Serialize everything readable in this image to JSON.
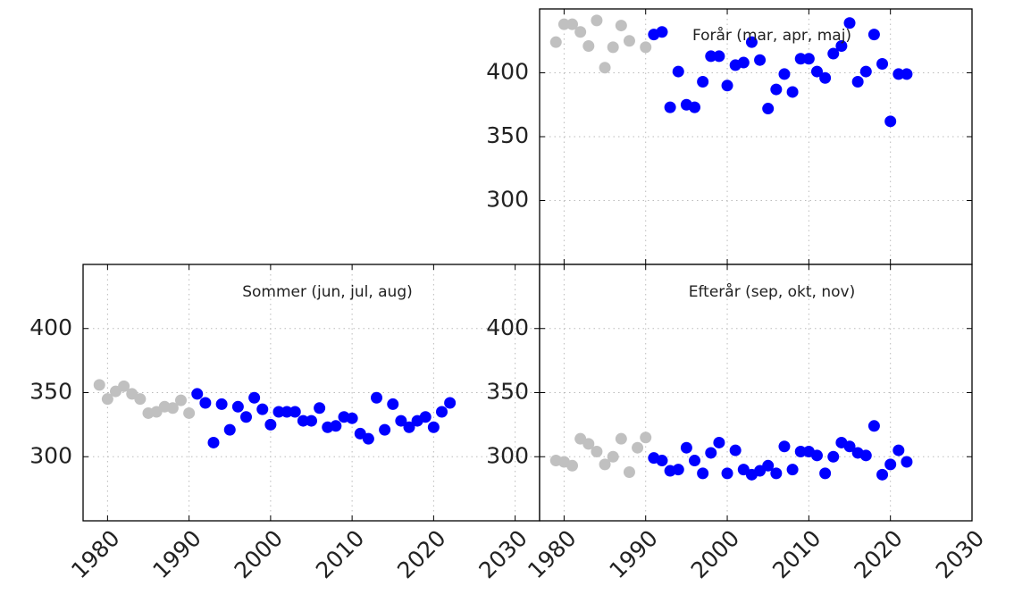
{
  "chart_data": [
    {
      "type": "scatter",
      "title": "Forår (mar, apr, maj)",
      "xlim": [
        1977,
        2030
      ],
      "ylim": [
        250,
        450
      ],
      "xticks": [
        1980,
        1990,
        2000,
        2010,
        2020,
        2030
      ],
      "yticks": [
        300,
        350,
        400
      ],
      "grid": true,
      "series": [
        {
          "color": "#c0c0c0",
          "x": [
            1979,
            1980,
            1981,
            1982,
            1983,
            1984,
            1985,
            1986,
            1987,
            1988,
            1990
          ],
          "values": [
            424,
            438,
            438,
            432,
            421,
            441,
            404,
            420,
            437,
            425,
            420
          ]
        },
        {
          "color": "#0000ff",
          "x": [
            1991,
            1992,
            1993,
            1994,
            1995,
            1996,
            1997,
            1998,
            1999,
            2000,
            2001,
            2002,
            2003,
            2004,
            2005,
            2006,
            2007,
            2008,
            2009,
            2010,
            2011,
            2012,
            2013,
            2014,
            2015,
            2016,
            2017,
            2018,
            2019,
            2020,
            2021,
            2022
          ],
          "values": [
            430,
            432,
            373,
            401,
            375,
            373,
            393,
            413,
            413,
            390,
            406,
            408,
            424,
            410,
            372,
            387,
            399,
            385,
            411,
            411,
            401,
            396,
            415,
            421,
            439,
            393,
            401,
            430,
            407,
            362,
            399,
            399
          ]
        }
      ]
    },
    {
      "type": "scatter",
      "title": "Sommer (jun, jul, aug)",
      "xlim": [
        1977,
        2033
      ],
      "ylim": [
        250,
        450
      ],
      "xticks": [
        1980,
        1990,
        2000,
        2010,
        2020,
        2030
      ],
      "yticks": [
        300,
        350,
        400
      ],
      "grid": true,
      "series": [
        {
          "color": "#c0c0c0",
          "x": [
            1979,
            1980,
            1981,
            1982,
            1983,
            1984,
            1985,
            1986,
            1987,
            1988,
            1989,
            1990
          ],
          "values": [
            356,
            345,
            351,
            355,
            349,
            345,
            334,
            335,
            339,
            338,
            344,
            334
          ]
        },
        {
          "color": "#0000ff",
          "x": [
            1991,
            1992,
            1993,
            1994,
            1995,
            1996,
            1997,
            1998,
            1999,
            2000,
            2001,
            2002,
            2003,
            2004,
            2005,
            2006,
            2007,
            2008,
            2009,
            2010,
            2011,
            2012,
            2013,
            2014,
            2015,
            2016,
            2017,
            2018,
            2019,
            2020,
            2021,
            2022
          ],
          "values": [
            349,
            342,
            311,
            341,
            321,
            339,
            331,
            346,
            337,
            325,
            335,
            335,
            335,
            328,
            328,
            338,
            323,
            324,
            331,
            330,
            318,
            314,
            346,
            321,
            341,
            328,
            323,
            328,
            331,
            323,
            335,
            342
          ]
        }
      ]
    },
    {
      "type": "scatter",
      "title": "Efterår (sep, okt, nov)",
      "xlim": [
        1977,
        2030
      ],
      "ylim": [
        250,
        450
      ],
      "xticks": [
        1980,
        1990,
        2000,
        2010,
        2020,
        2030
      ],
      "yticks": [
        300,
        350,
        400
      ],
      "grid": true,
      "series": [
        {
          "color": "#c0c0c0",
          "x": [
            1979,
            1980,
            1981,
            1982,
            1983,
            1984,
            1985,
            1986,
            1987,
            1988,
            1989,
            1990
          ],
          "values": [
            297,
            296,
            293,
            314,
            310,
            304,
            294,
            300,
            314,
            288,
            307,
            315
          ]
        },
        {
          "color": "#0000ff",
          "x": [
            1991,
            1992,
            1993,
            1994,
            1995,
            1996,
            1997,
            1998,
            1999,
            2000,
            2001,
            2002,
            2003,
            2004,
            2005,
            2006,
            2007,
            2008,
            2009,
            2010,
            2011,
            2012,
            2013,
            2014,
            2015,
            2016,
            2017,
            2018,
            2019,
            2020,
            2021,
            2022
          ],
          "values": [
            299,
            297,
            289,
            290,
            307,
            297,
            287,
            303,
            311,
            287,
            305,
            290,
            286,
            289,
            293,
            287,
            308,
            290,
            304,
            304,
            301,
            287,
            300,
            311,
            308,
            303,
            301,
            324,
            286,
            294,
            305,
            296
          ]
        }
      ]
    }
  ]
}
